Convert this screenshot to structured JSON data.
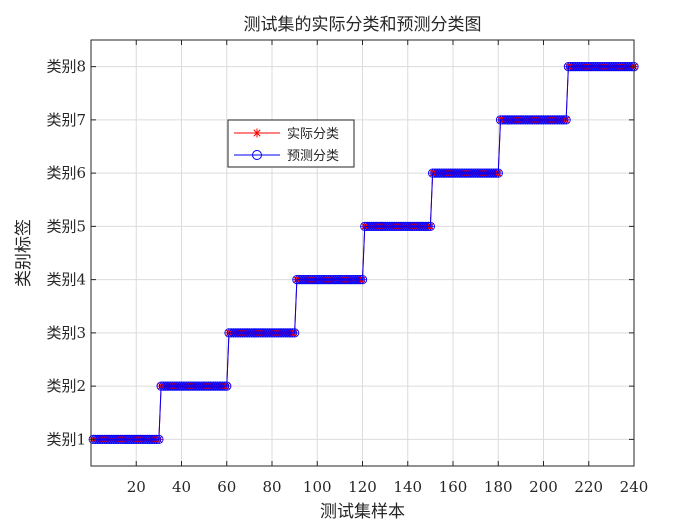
{
  "chart_data": {
    "type": "line",
    "title": "测试集的实际分类和预测分类图",
    "xlabel": "测试集样本",
    "ylabel": "类别标签",
    "xlim": [
      0,
      240
    ],
    "ylim": [
      0.5,
      8.5
    ],
    "x_ticks": [
      20,
      40,
      60,
      80,
      100,
      120,
      140,
      160,
      180,
      200,
      220,
      240
    ],
    "y_ticks": [
      1,
      2,
      3,
      4,
      5,
      6,
      7,
      8
    ],
    "y_tick_labels": [
      "类别1",
      "类别2",
      "类别3",
      "类别4",
      "类别5",
      "类别6",
      "类别7",
      "类别8"
    ],
    "grid": true,
    "legend_location": "upper-left-inside",
    "n_samples": 240,
    "samples_per_class": 30,
    "series": [
      {
        "name": "实际分类",
        "color": "#ff0000",
        "marker": "asterisk",
        "segments": [
          {
            "x_start": 1,
            "x_end": 30,
            "class": 1
          },
          {
            "x_start": 31,
            "x_end": 60,
            "class": 2
          },
          {
            "x_start": 61,
            "x_end": 90,
            "class": 3
          },
          {
            "x_start": 91,
            "x_end": 120,
            "class": 4
          },
          {
            "x_start": 121,
            "x_end": 150,
            "class": 5
          },
          {
            "x_start": 151,
            "x_end": 180,
            "class": 6
          },
          {
            "x_start": 181,
            "x_end": 210,
            "class": 7
          },
          {
            "x_start": 211,
            "x_end": 240,
            "class": 8
          }
        ]
      },
      {
        "name": "预测分类",
        "color": "#0000ff",
        "marker": "circle",
        "segments": [
          {
            "x_start": 1,
            "x_end": 30,
            "class": 1
          },
          {
            "x_start": 31,
            "x_end": 60,
            "class": 2
          },
          {
            "x_start": 61,
            "x_end": 90,
            "class": 3
          },
          {
            "x_start": 91,
            "x_end": 120,
            "class": 4
          },
          {
            "x_start": 121,
            "x_end": 150,
            "class": 5
          },
          {
            "x_start": 151,
            "x_end": 180,
            "class": 6
          },
          {
            "x_start": 181,
            "x_end": 210,
            "class": 7
          },
          {
            "x_start": 211,
            "x_end": 240,
            "class": 8
          }
        ]
      }
    ]
  }
}
